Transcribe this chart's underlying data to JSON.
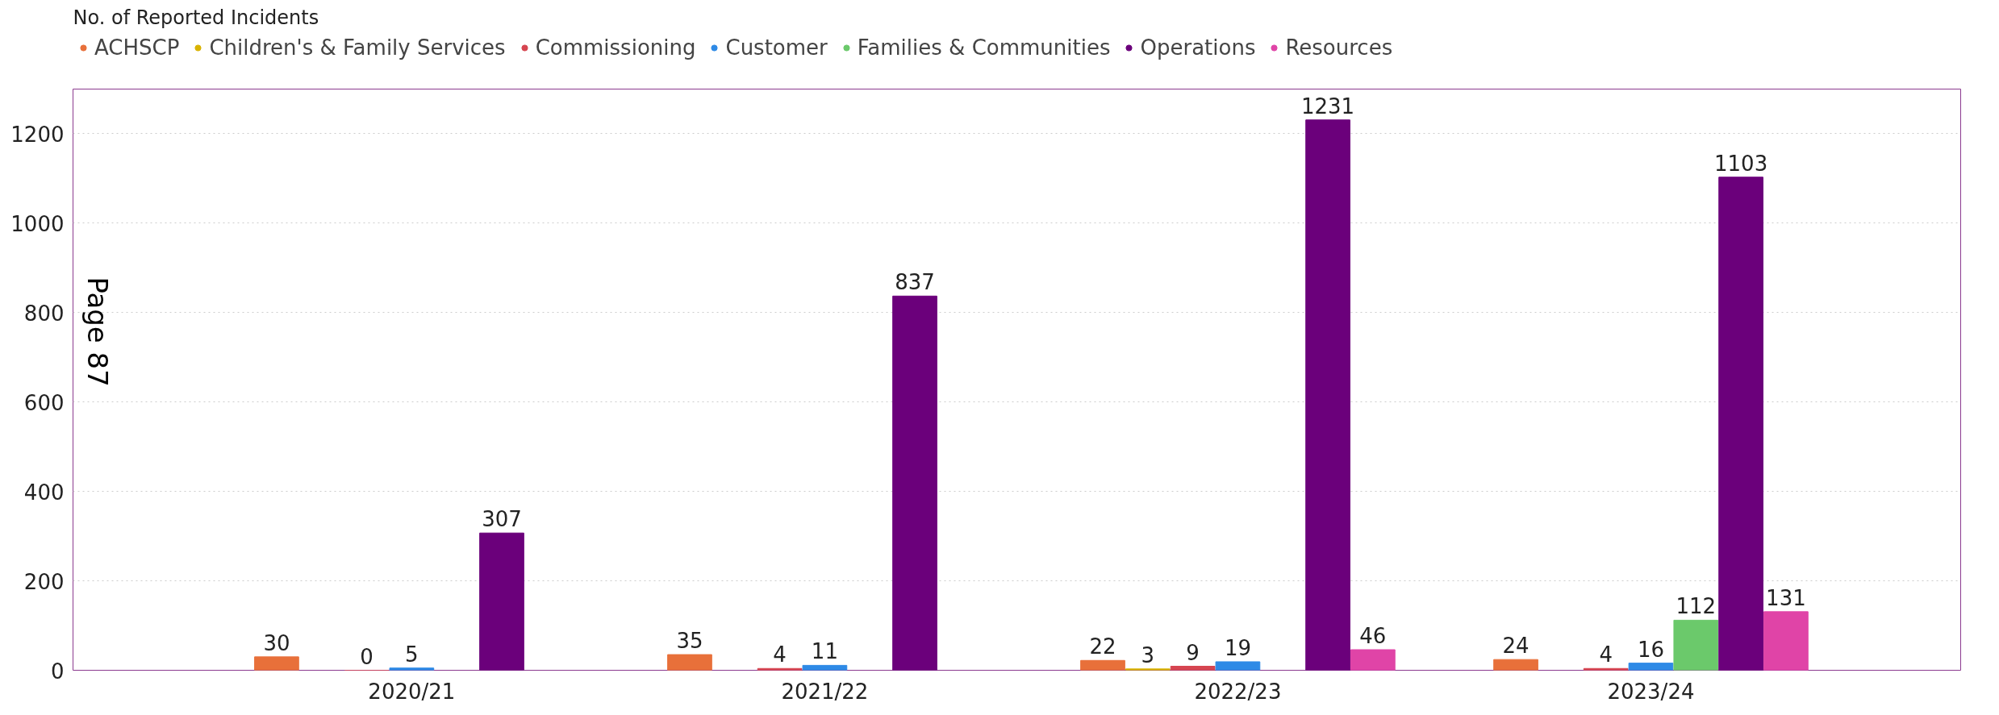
{
  "chart_data": {
    "type": "bar",
    "title": "No. of Reported Incidents",
    "categories": [
      "2020/21",
      "2021/22",
      "2022/23",
      "2023/24"
    ],
    "series": [
      {
        "name": "ACHSCP",
        "color": "#e8703a",
        "values": [
          30,
          35,
          22,
          24
        ]
      },
      {
        "name": "Children's & Family Services",
        "color": "#d9b300",
        "values": [
          null,
          null,
          3,
          null
        ]
      },
      {
        "name": "Commissioning",
        "color": "#d64550",
        "values": [
          0,
          4,
          9,
          4
        ]
      },
      {
        "name": "Customer",
        "color": "#2e8ae6",
        "values": [
          5,
          11,
          19,
          16
        ]
      },
      {
        "name": "Families & Communities",
        "color": "#6bc96b",
        "values": [
          null,
          null,
          null,
          112
        ]
      },
      {
        "name": "Operations",
        "color": "#6b007b",
        "values": [
          307,
          837,
          1231,
          1103
        ]
      },
      {
        "name": "Resources",
        "color": "#e044a7",
        "values": [
          null,
          null,
          46,
          131
        ]
      }
    ],
    "ylim": [
      0,
      1300
    ],
    "yticks": [
      0,
      200,
      400,
      600,
      800,
      1000,
      1200
    ],
    "grid": "y",
    "legend": "top left",
    "data_labels": true,
    "annotations": [
      "Page 87"
    ]
  }
}
